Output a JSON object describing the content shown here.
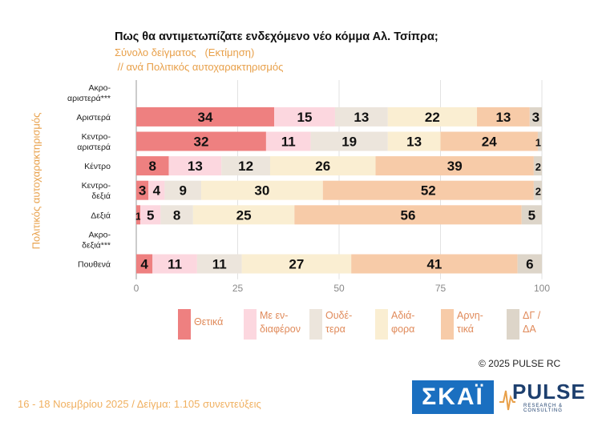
{
  "header": {
    "title": "Πως θα αντιμετωπίζατε ενδεχόμενο νέο κόμμα Αλ. Τσίπρα;",
    "subtitle1": "Σύνολο δείγματος   (Εκτίμηση)",
    "subtitle2": " // ανά Πολιτικός αυτοχαρακτηρισμός"
  },
  "chart_data": {
    "type": "bar",
    "orientation": "horizontal",
    "stacked": true,
    "ylabel": "Πολιτικός αυτοχαρακτηρισμός",
    "categories": [
      [
        "Ακρο-",
        "αριστερά***"
      ],
      [
        "Αριστερά"
      ],
      [
        "Κεντρο-",
        "αριστερά"
      ],
      [
        "Κέντρο"
      ],
      [
        "Κεντρο-",
        "δεξιά"
      ],
      [
        "Δεξιά"
      ],
      [
        "Ακρο-",
        "δεξιά***"
      ],
      [
        "Πουθενά"
      ]
    ],
    "series": [
      {
        "name": [
          "Θετικά"
        ],
        "color": "#ee8080",
        "values": [
          null,
          34,
          32,
          8,
          3,
          1,
          null,
          4
        ]
      },
      {
        "name": [
          "Με εν-",
          "διαφέρον"
        ],
        "color": "#fcd7df",
        "values": [
          null,
          15,
          11,
          13,
          4,
          5,
          null,
          11
        ]
      },
      {
        "name": [
          "Ουδέ-",
          "τερα"
        ],
        "color": "#ece5dc",
        "values": [
          null,
          13,
          19,
          12,
          9,
          8,
          null,
          11
        ]
      },
      {
        "name": [
          "Αδιά-",
          "φορα"
        ],
        "color": "#faeed2",
        "values": [
          null,
          22,
          13,
          26,
          30,
          25,
          null,
          27
        ]
      },
      {
        "name": [
          "Αρνη-",
          "τικά"
        ],
        "color": "#f7cba8",
        "values": [
          null,
          13,
          24,
          39,
          52,
          56,
          null,
          41
        ]
      },
      {
        "name": [
          "ΔΓ /",
          "ΔΑ"
        ],
        "color": "#ddd5c9",
        "values": [
          null,
          3,
          1,
          2,
          2,
          5,
          null,
          6
        ]
      }
    ],
    "xlim": [
      0,
      100
    ],
    "xticks": [
      "0",
      "25",
      "50",
      "75",
      "100"
    ],
    "grid": true,
    "legend_position": "bottom"
  },
  "footer": {
    "copyright": "© 2025 PULSE RC",
    "date_sample": "16 - 18 Νοεμβρίου 2025  /  Δείγμα:  1.105 συνεντεύξεις",
    "brand_skai": "ΣΚΑΪ",
    "brand_pulse": "PULSE",
    "brand_pulse_sub": "RESEARCH & CONSULTING"
  }
}
